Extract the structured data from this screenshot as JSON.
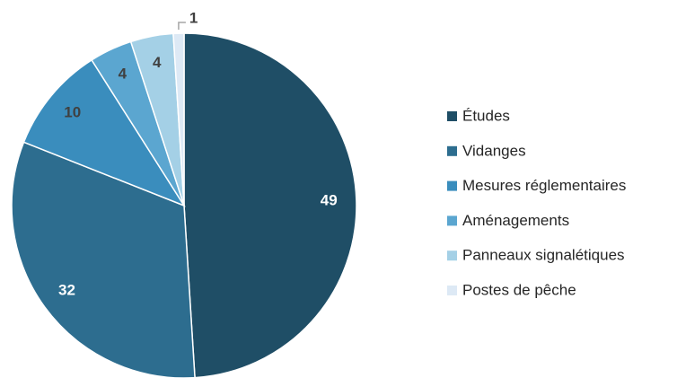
{
  "chart_data": {
    "type": "pie",
    "categories": [
      "Études",
      "Vidanges",
      "Mesures réglementaires",
      "Aménagements",
      "Panneaux signalétiques",
      "Postes de pêche"
    ],
    "values": [
      49,
      32,
      10,
      4,
      4,
      1
    ],
    "colors": [
      "#1f4e66",
      "#2d6d8f",
      "#3a8dbd",
      "#5ba6d0",
      "#a4d0e6",
      "#dde9f5"
    ],
    "legend": "right"
  }
}
